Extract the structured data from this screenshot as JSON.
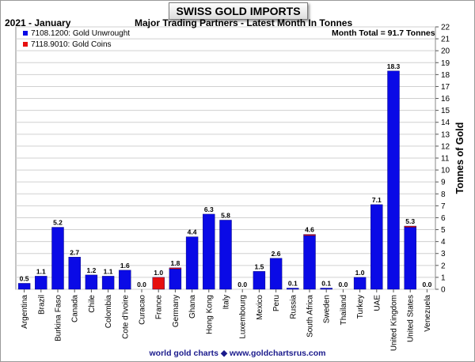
{
  "header": {
    "title": "SWISS GOLD IMPORTS",
    "period": "2021 - January",
    "subtitle": "Major Trading Partners - Latest Month In Tonnes",
    "month_total": "Month Total = 91.7 Tonnes"
  },
  "footer": {
    "text": "world gold charts ◆ www.goldchartsrus.com"
  },
  "colors": {
    "unwrought": "#0a0ae6",
    "coins": "#e60f0f",
    "grid": "#d0d0d0"
  },
  "chart_data": {
    "type": "bar",
    "stacked": true,
    "title": "SWISS GOLD IMPORTS",
    "ylabel": "Tonnes of Gold",
    "ylim": [
      0,
      22
    ],
    "y_ticks": [
      "0",
      "1",
      "2",
      "3",
      "4",
      "5",
      "6",
      "7",
      "8",
      "9",
      "10",
      "11",
      "12",
      "13",
      "14",
      "15",
      "16",
      "17",
      "18",
      "19",
      "20",
      "21",
      "22"
    ],
    "y_axis_side": "right",
    "grid": true,
    "legend_position": "top-left",
    "categories": [
      "Argentina",
      "Brazil",
      "Burkina Faso",
      "Canada",
      "Chile",
      "Colombia",
      "Cote d'Ivoire",
      "Curacao",
      "France",
      "Germany",
      "Ghana",
      "Hong Kong",
      "Italy",
      "Luxembourg",
      "Mexico",
      "Peru",
      "Russia",
      "South Africa",
      "Sweden",
      "Thailand",
      "Turkey",
      "UAE",
      "United Kingdom",
      "United States",
      "Venezuela"
    ],
    "series": [
      {
        "name": "7108.1200: Gold Unwrought",
        "color": "#0a0ae6",
        "values": [
          0.5,
          1.1,
          5.2,
          2.7,
          1.2,
          1.1,
          1.6,
          0.0,
          0.0,
          1.7,
          4.4,
          6.3,
          5.8,
          0.0,
          1.5,
          2.6,
          0.1,
          4.5,
          0.1,
          0.0,
          1.0,
          7.1,
          18.3,
          5.2,
          0.0
        ]
      },
      {
        "name": "7118.9010: Gold Coins",
        "color": "#e60f0f",
        "values": [
          0.0,
          0.0,
          0.0,
          0.0,
          0.0,
          0.0,
          0.0,
          0.0,
          1.0,
          0.1,
          0.0,
          0.0,
          0.0,
          0.0,
          0.0,
          0.0,
          0.0,
          0.1,
          0.0,
          0.0,
          0.0,
          0.0,
          0.0,
          0.1,
          0.0
        ]
      }
    ],
    "data_labels": [
      "0.5",
      "1.1",
      "5.2",
      "2.7",
      "1.2",
      "1.1",
      "1.6",
      "0.0",
      "1.0",
      "1.8",
      "4.4",
      "6.3",
      "5.8",
      "0.0",
      "1.5",
      "2.6",
      "0.1",
      "4.6",
      "0.1",
      "0.0",
      "1.0",
      "7.1",
      "18.3",
      "5.3",
      "0.0"
    ]
  }
}
